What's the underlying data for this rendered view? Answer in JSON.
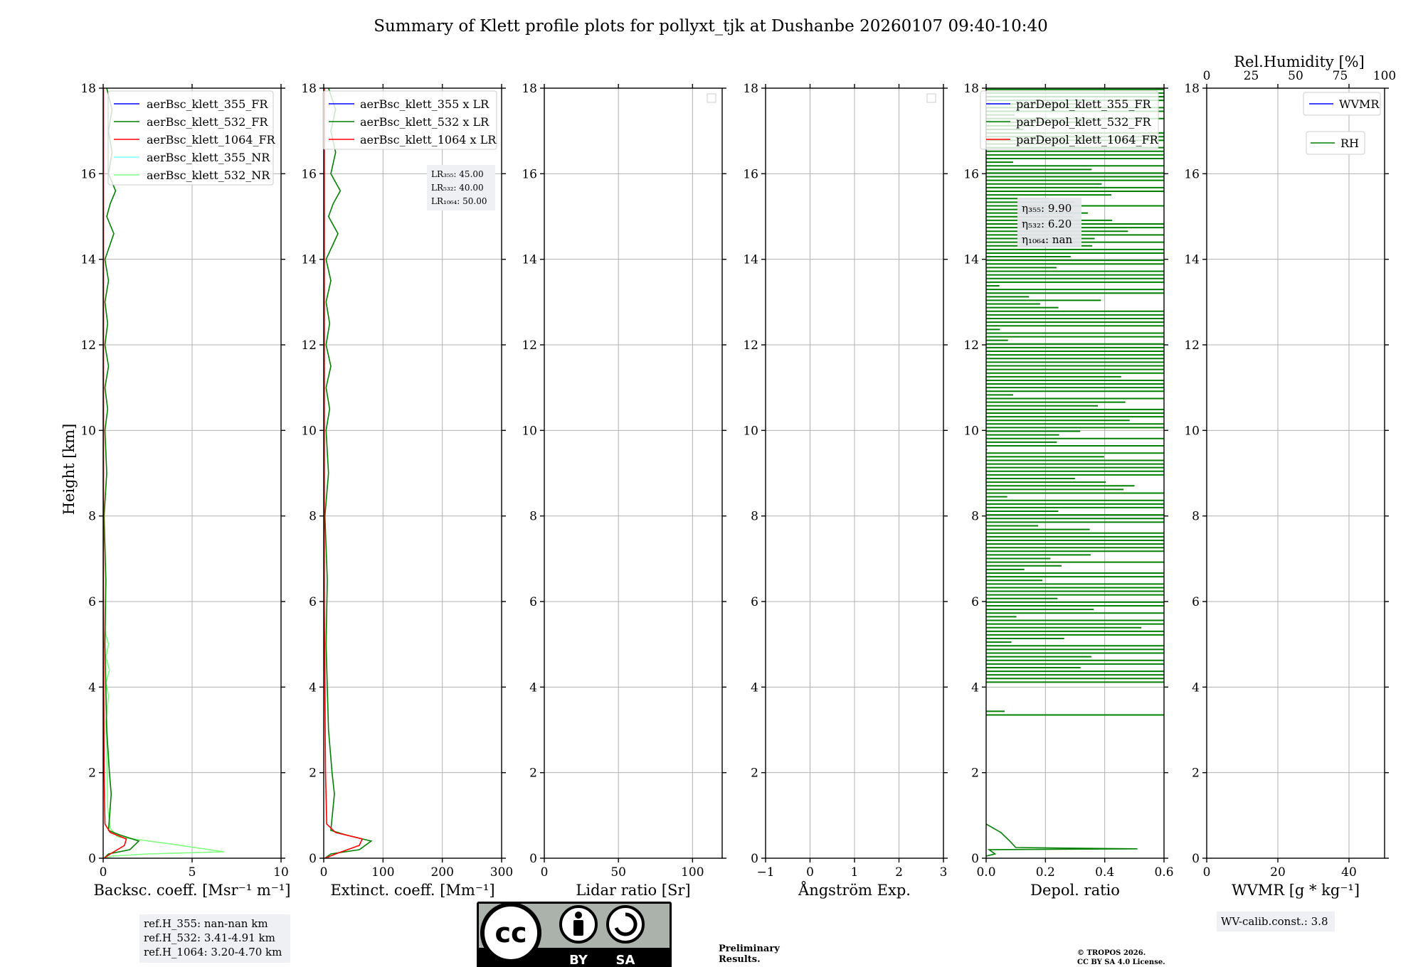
{
  "title": "Summary of Klett profile plots for pollyxt_tjk at Dushanbe 20260107 09:40-10:40",
  "y_axis": {
    "label": "Height [km]",
    "range": [
      0,
      18
    ],
    "ticks": [
      0,
      2,
      4,
      6,
      8,
      10,
      12,
      14,
      16,
      18
    ]
  },
  "colors": {
    "c355": "#0000ff",
    "c532": "#008000",
    "c1064": "#ff0000",
    "c355nr": "#80ffff",
    "c532nr": "#80ff80",
    "prelim": "#ff0000"
  },
  "chart_data": [
    {
      "type": "line",
      "xlabel": "Backsc. coeff. [Msr⁻¹ m⁻¹]",
      "xlim": [
        0,
        10
      ],
      "xticks": [
        0,
        5,
        10
      ],
      "legend": [
        "aerBsc_klett_355_FR",
        "aerBsc_klett_532_FR",
        "aerBsc_klett_1064_FR",
        "aerBsc_klett_355_NR",
        "aerBsc_klett_532_NR"
      ],
      "series": [
        {
          "name": "aerBsc_klett_532_NR",
          "color": "#80ff80",
          "points": [
            [
              0.1,
              0
            ],
            [
              0.5,
              0.05
            ],
            [
              2.5,
              0.1
            ],
            [
              6.8,
              0.15
            ],
            [
              3.5,
              0.35
            ],
            [
              0.8,
              0.5
            ],
            [
              0.4,
              0.7
            ],
            [
              0.25,
              1.2
            ],
            [
              0.2,
              2.5
            ],
            [
              0.15,
              3.2
            ],
            [
              0.3,
              3.8
            ],
            [
              0.15,
              4.1
            ],
            [
              0.35,
              4.4
            ],
            [
              0.15,
              4.7
            ],
            [
              0.3,
              5.0
            ],
            [
              0.1,
              5.3
            ]
          ]
        },
        {
          "name": "aerBsc_klett_532_FR",
          "color": "#008000",
          "points": [
            [
              0.05,
              0
            ],
            [
              0.3,
              0.1
            ],
            [
              1.5,
              0.2
            ],
            [
              2.0,
              0.4
            ],
            [
              0.9,
              0.55
            ],
            [
              0.3,
              0.65
            ],
            [
              0.45,
              1.5
            ],
            [
              0.35,
              2.0
            ],
            [
              0.2,
              3.0
            ],
            [
              0.1,
              5.0
            ],
            [
              0.15,
              6.5
            ],
            [
              0.05,
              8.0
            ],
            [
              0.2,
              9.0
            ],
            [
              0.1,
              10.0
            ],
            [
              0.25,
              10.5
            ],
            [
              0.1,
              11.0
            ],
            [
              0.3,
              11.5
            ],
            [
              0.1,
              12.0
            ],
            [
              0.25,
              12.5
            ],
            [
              0.1,
              13.0
            ],
            [
              0.3,
              13.5
            ],
            [
              0.1,
              14.0
            ],
            [
              0.6,
              14.6
            ],
            [
              0.2,
              15.0
            ],
            [
              0.4,
              15.3
            ],
            [
              0.7,
              15.6
            ],
            [
              0.3,
              16.0
            ],
            [
              0.5,
              16.5
            ],
            [
              0.3,
              17.0
            ],
            [
              0.5,
              17.5
            ],
            [
              0.2,
              18.0
            ]
          ]
        },
        {
          "name": "aerBsc_klett_1064_FR",
          "color": "#ff0000",
          "points": [
            [
              0.05,
              0
            ],
            [
              0.4,
              0.1
            ],
            [
              1.2,
              0.3
            ],
            [
              1.3,
              0.45
            ],
            [
              0.4,
              0.6
            ],
            [
              0.1,
              0.8
            ],
            [
              0.05,
              2
            ],
            [
              0.02,
              6
            ],
            [
              0.02,
              18
            ]
          ]
        }
      ]
    },
    {
      "type": "line",
      "xlabel": "Extinct. coeff. [Mm⁻¹]",
      "xlim": [
        0,
        300
      ],
      "xticks": [
        0,
        100,
        200,
        300
      ],
      "legend": [
        "aerBsc_klett_355 x LR",
        "aerBsc_klett_532 x LR",
        "aerBsc_klett_1064 x LR"
      ],
      "lr_labels": [
        "LR₃₅₅: 45.00",
        "LR₅₃₂: 40.00",
        "LR₁₀₆₄: 50.00"
      ],
      "series": [
        {
          "name": "aerBsc_klett_532 x LR",
          "color": "#008000",
          "points": [
            [
              2,
              0
            ],
            [
              12,
              0.1
            ],
            [
              60,
              0.2
            ],
            [
              80,
              0.4
            ],
            [
              36,
              0.55
            ],
            [
              12,
              0.65
            ],
            [
              18,
              1.5
            ],
            [
              14,
              2.0
            ],
            [
              8,
              3.0
            ],
            [
              4,
              5.0
            ],
            [
              6,
              6.5
            ],
            [
              2,
              8.0
            ],
            [
              8,
              9.0
            ],
            [
              4,
              10.0
            ],
            [
              10,
              10.5
            ],
            [
              4,
              11.0
            ],
            [
              12,
              11.5
            ],
            [
              4,
              12.0
            ],
            [
              10,
              12.5
            ],
            [
              4,
              13.0
            ],
            [
              12,
              13.5
            ],
            [
              4,
              14.0
            ],
            [
              24,
              14.6
            ],
            [
              8,
              15.0
            ],
            [
              16,
              15.3
            ],
            [
              28,
              15.6
            ],
            [
              12,
              16.0
            ],
            [
              20,
              16.5
            ],
            [
              12,
              17.0
            ],
            [
              20,
              17.5
            ],
            [
              8,
              18.0
            ]
          ]
        },
        {
          "name": "aerBsc_klett_1064 x LR",
          "color": "#ff0000",
          "points": [
            [
              2,
              0
            ],
            [
              20,
              0.1
            ],
            [
              60,
              0.3
            ],
            [
              65,
              0.45
            ],
            [
              20,
              0.6
            ],
            [
              5,
              0.8
            ],
            [
              3,
              2
            ],
            [
              1,
              6
            ],
            [
              1,
              18
            ]
          ]
        }
      ]
    },
    {
      "type": "line",
      "xlabel": "Lidar ratio [Sr]",
      "xlim": [
        0,
        120
      ],
      "xticks": [
        0,
        50,
        100
      ],
      "series": []
    },
    {
      "type": "line",
      "xlabel": "Ångström Exp.",
      "xlim": [
        -1,
        3
      ],
      "xticks": [
        -1,
        0,
        1,
        2,
        3
      ],
      "series": []
    },
    {
      "type": "line",
      "xlabel": "Depol. ratio",
      "xlim": [
        0,
        0.6
      ],
      "xticks": [
        0.0,
        0.2,
        0.4,
        0.6
      ],
      "xtick_labels": [
        "0.0",
        "0.2",
        "0.4",
        "0.6"
      ],
      "legend": [
        "parDepol_klett_355_FR",
        "parDepol_klett_532_FR",
        "parDepol_klett_1064_FR"
      ],
      "eta_labels": [
        "η₃₅₅: 9.90",
        "η₅₃₂: 6.20",
        "η₁₀₆₄: nan"
      ],
      "series": [
        {
          "name": "parDepol_klett_532_FR",
          "color": "#008000",
          "points": [
            [
              0.0,
              0.05
            ],
            [
              0.03,
              0.1
            ],
            [
              0.01,
              0.2
            ],
            [
              0.51,
              0.22
            ],
            [
              0.1,
              0.25
            ],
            [
              0.08,
              0.4
            ],
            [
              0.05,
              0.6
            ],
            [
              0.0,
              0.8
            ]
          ]
        }
      ],
      "spikes_note": "horizontal noise bars between 3.3 and 18 km"
    },
    {
      "type": "line",
      "xlabel": "WVMR [g * kg⁻¹]",
      "xlim": [
        0,
        50
      ],
      "xticks": [
        0,
        20,
        40
      ],
      "top_axis": {
        "label": "Rel.Humidity [%]",
        "range": [
          0,
          100
        ],
        "ticks": [
          0,
          25,
          50,
          75,
          100
        ]
      },
      "legend": [
        "WVMR",
        "RH"
      ],
      "series": []
    }
  ],
  "footer": {
    "ref_heights": [
      "ref.H_355: nan-nan km",
      "ref.H_532: 3.41-4.91 km",
      "ref.H_1064: 3.20-4.70 km"
    ],
    "cc_by": "BY",
    "cc_sa": "SA",
    "preliminary": [
      "Preliminary",
      "Results."
    ],
    "copyright": [
      "© TROPOS 2026.",
      "CC BY SA 4.0 License."
    ],
    "wv_calib": "WV-calib.const.: 3.8"
  }
}
